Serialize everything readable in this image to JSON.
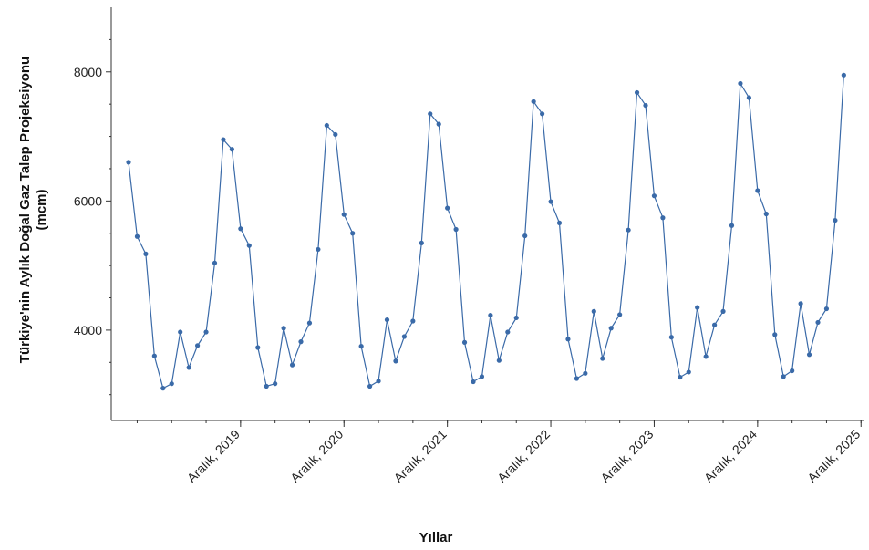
{
  "chart_data": {
    "type": "line",
    "title": "",
    "xlabel": "Yıllar",
    "ylabel": "Türkiye'nin Aylık Doğal Gaz Talep Projeksiyonu\n(mcm)",
    "yticks": [
      4000,
      6000,
      8000
    ],
    "ylim": [
      2600,
      9000
    ],
    "xlim": [
      0,
      85
    ],
    "xticks": [
      {
        "index": 13,
        "label": "Aralık, 2019"
      },
      {
        "index": 25,
        "label": "Aralık, 2020"
      },
      {
        "index": 37,
        "label": "Aralık, 2021"
      },
      {
        "index": 49,
        "label": "Aralık, 2022"
      },
      {
        "index": 61,
        "label": "Aralık, 2023"
      },
      {
        "index": 73,
        "label": "Aralık, 2024"
      },
      {
        "index": 85,
        "label": "Aralık, 2025"
      }
    ],
    "grid": false,
    "series_color": "#3a6aa8",
    "series": [
      {
        "name": "",
        "values": [
          6600,
          5450,
          5180,
          3600,
          3100,
          3170,
          3970,
          3420,
          3760,
          3970,
          5040,
          6950,
          6800,
          5570,
          5310,
          3730,
          3130,
          3170,
          4030,
          3460,
          3820,
          4110,
          5250,
          7170,
          7030,
          5790,
          5500,
          3750,
          3130,
          3210,
          4160,
          3520,
          3900,
          4140,
          5350,
          7350,
          7190,
          5890,
          5560,
          3810,
          3200,
          3280,
          4230,
          3530,
          3970,
          4190,
          5460,
          7540,
          7350,
          5990,
          5660,
          3860,
          3250,
          3330,
          4290,
          3560,
          4030,
          4240,
          5550,
          7680,
          7480,
          6080,
          5740,
          3890,
          3270,
          3350,
          4350,
          3590,
          4080,
          4290,
          5620,
          7820,
          7600,
          6160,
          5800,
          3930,
          3280,
          3370,
          4410,
          3620,
          4120,
          4330,
          5700,
          7950
        ]
      }
    ]
  }
}
